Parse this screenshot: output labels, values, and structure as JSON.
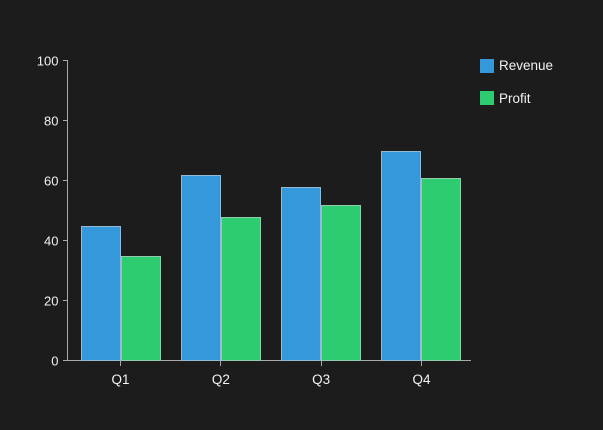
{
  "chart_data": {
    "type": "bar",
    "categories": [
      "Q1",
      "Q2",
      "Q3",
      "Q4"
    ],
    "series": [
      {
        "name": "Revenue",
        "color": "#3498db",
        "values": [
          45,
          62,
          58,
          70
        ]
      },
      {
        "name": "Profit",
        "color": "#2ecc71",
        "values": [
          35,
          48,
          52,
          61
        ]
      }
    ],
    "ylim": [
      0,
      100
    ],
    "yticks": [
      0,
      20,
      40,
      60,
      80,
      100
    ],
    "grid": false,
    "legend_position": "top-right"
  },
  "colors": {
    "background": "#1c1c1c",
    "text": "#f2f2f2",
    "axis": "#a9a9a9",
    "bar_edge": "#c8ccd0"
  }
}
